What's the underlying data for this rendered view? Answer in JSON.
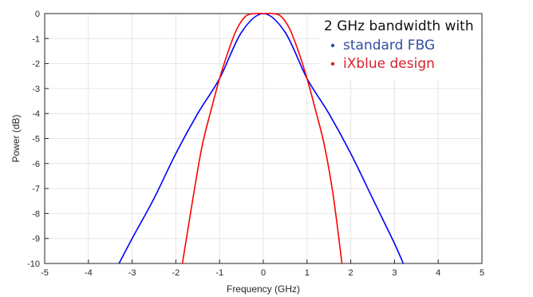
{
  "chart_data": {
    "type": "line",
    "xlabel": "Frequency (GHz)",
    "ylabel": "Power (dB)",
    "xlim": [
      -5,
      5
    ],
    "ylim": [
      -10,
      0
    ],
    "xticks": [
      "-5",
      "-4",
      "-3",
      "-2",
      "-1",
      "0",
      "1",
      "2",
      "3",
      "4",
      "5"
    ],
    "yticks": [
      "0",
      "-1",
      "-2",
      "-3",
      "-4",
      "-5",
      "-6",
      "-7",
      "-8",
      "-9",
      "-10"
    ],
    "grid": true,
    "legend": {
      "title": "2 GHz bandwidth with",
      "placement": "top-right"
    },
    "series": [
      {
        "name": "standard FBG",
        "color": "#0000ff",
        "legend_color": "#2e4f9e",
        "x": [
          -3.3,
          -3.0,
          -2.5,
          -2.0,
          -1.5,
          -1.0,
          -0.5,
          0.0,
          0.5,
          1.0,
          1.5,
          2.0,
          2.5,
          3.0,
          3.2
        ],
        "y": [
          -10,
          -9.0,
          -7.4,
          -5.6,
          -4.0,
          -2.6,
          -0.75,
          0,
          -0.75,
          -2.6,
          -4.0,
          -5.6,
          -7.4,
          -9.2,
          -10
        ]
      },
      {
        "name": "iXblue design",
        "color": "#ff0000",
        "legend_color": "#d9202a",
        "x": [
          -1.85,
          -1.6,
          -1.4,
          -1.2,
          -1.0,
          -0.8,
          -0.6,
          -0.4,
          -0.2,
          0.0,
          0.2,
          0.4,
          0.6,
          0.8,
          1.0,
          1.2,
          1.4,
          1.6,
          1.8
        ],
        "y": [
          -10,
          -7.3,
          -5.3,
          -3.9,
          -2.6,
          -1.5,
          -0.6,
          -0.1,
          0,
          0,
          0,
          -0.1,
          -0.6,
          -1.5,
          -2.6,
          -3.9,
          -5.3,
          -7.3,
          -10
        ]
      }
    ]
  }
}
